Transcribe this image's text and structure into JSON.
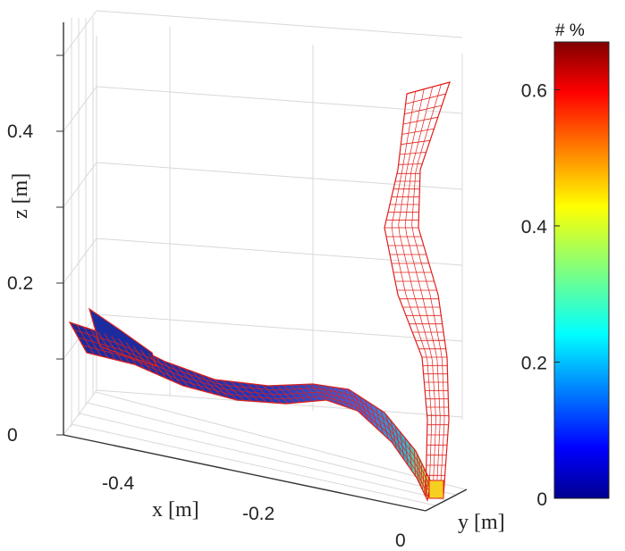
{
  "chart_data": {
    "type": "surface3d",
    "axes": {
      "x": {
        "label": "x [m]",
        "ticks": [
          "-0.4",
          "-0.2",
          "0"
        ],
        "range": [
          -0.5,
          0
        ]
      },
      "y": {
        "label": "y [m]",
        "ticks": []
      },
      "z": {
        "label": "z [m]",
        "ticks": [
          "0",
          "0.2",
          "0.4"
        ],
        "range": [
          0,
          0.55
        ]
      }
    },
    "grid": true,
    "colorbar": {
      "title": "# %",
      "colormap": "jet",
      "ticks": [
        "0",
        "0.2",
        "0.4",
        "0.6"
      ],
      "range": [
        0,
        0.67
      ],
      "placement": "right"
    },
    "surfaces": [
      {
        "shape": "deformed strip lying along x near z = 0",
        "edge_color": "#e0201c",
        "face_colormap": "jet",
        "face_value_approx": 0.05,
        "centerline_xz": [
          [
            -0.48,
            0.14
          ],
          [
            -0.42,
            0.11
          ],
          [
            -0.35,
            0.085
          ],
          [
            -0.28,
            0.07
          ],
          [
            -0.2,
            0.06
          ],
          [
            -0.14,
            0.06
          ],
          [
            -0.1,
            0.055
          ],
          [
            -0.05,
            0.03
          ],
          [
            -0.01,
            0.0
          ]
        ]
      },
      {
        "shape": "deformed strip rising vertically from the base corner",
        "edge_color": "#e0201c",
        "face_colormap": "none",
        "centerline_xz": [
          [
            -0.01,
            0.0
          ],
          [
            -0.03,
            0.1
          ],
          [
            -0.05,
            0.2
          ],
          [
            -0.06,
            0.32
          ],
          [
            -0.05,
            0.45
          ],
          [
            -0.06,
            0.56
          ]
        ]
      }
    ]
  }
}
